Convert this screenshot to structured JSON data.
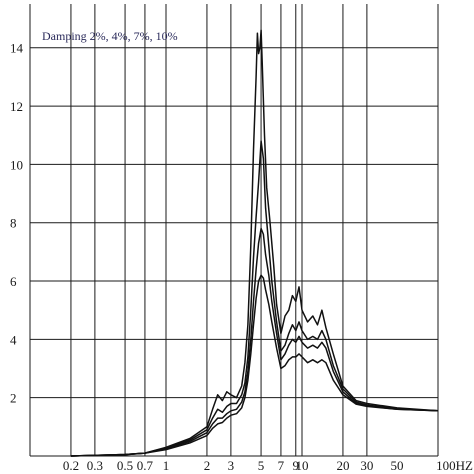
{
  "chart_data": {
    "type": "line",
    "title": "",
    "xlabel": "",
    "ylabel": "",
    "x_scale": "log",
    "xlim": [
      0.1,
      100
    ],
    "ylim": [
      0,
      15.5
    ],
    "grid": true,
    "legend_text": "Damping 2%, 4%, 7%, 10%",
    "legend_position": "top-left",
    "x_ticks": [
      {
        "value": 0.2,
        "label": "0.2"
      },
      {
        "value": 0.3,
        "label": "0.3"
      },
      {
        "value": 0.5,
        "label": "0.5"
      },
      {
        "value": 0.7,
        "label": "0.7"
      },
      {
        "value": 1,
        "label": "1"
      },
      {
        "value": 2,
        "label": "2"
      },
      {
        "value": 3,
        "label": "3"
      },
      {
        "value": 5,
        "label": "5"
      },
      {
        "value": 7,
        "label": "7"
      },
      {
        "value": 9,
        "label": "9"
      },
      {
        "value": 10,
        "label": "10"
      },
      {
        "value": 20,
        "label": "20"
      },
      {
        "value": 30,
        "label": "30"
      },
      {
        "value": 50,
        "label": "50"
      },
      {
        "value": 100,
        "label": "100HZ"
      }
    ],
    "x_grid": [
      0.2,
      0.3,
      0.5,
      0.7,
      1,
      2,
      3,
      5,
      7,
      9,
      10,
      20,
      30,
      100
    ],
    "y_ticks": [
      {
        "value": 2,
        "label": "2"
      },
      {
        "value": 4,
        "label": "4"
      },
      {
        "value": 6,
        "label": "6"
      },
      {
        "value": 8,
        "label": "8"
      },
      {
        "value": 10,
        "label": "10"
      },
      {
        "value": 12,
        "label": "12"
      },
      {
        "value": 14,
        "label": "14"
      }
    ],
    "series": [
      {
        "points": [
          [
            0.2,
            0
          ],
          [
            0.5,
            0.05
          ],
          [
            0.7,
            0.1
          ],
          [
            1,
            0.3
          ],
          [
            1.5,
            0.6
          ],
          [
            2,
            1
          ],
          [
            2.2,
            1.6
          ],
          [
            2.4,
            2.1
          ],
          [
            2.6,
            1.9
          ],
          [
            2.8,
            2.2
          ],
          [
            3,
            2.1
          ],
          [
            3.3,
            2.0
          ],
          [
            3.6,
            2.4
          ],
          [
            3.8,
            3.2
          ],
          [
            4.0,
            4.5
          ],
          [
            4.2,
            7.2
          ],
          [
            4.4,
            10.5
          ],
          [
            4.6,
            13.0
          ],
          [
            4.7,
            14.5
          ],
          [
            4.8,
            13.8
          ],
          [
            4.9,
            14.0
          ],
          [
            5.0,
            14.6
          ],
          [
            5.1,
            13.5
          ],
          [
            5.3,
            11.0
          ],
          [
            5.5,
            9.2
          ],
          [
            5.8,
            8.1
          ],
          [
            6.2,
            6.5
          ],
          [
            6.5,
            5.2
          ],
          [
            7.0,
            4.2
          ],
          [
            7.5,
            4.8
          ],
          [
            8.0,
            5.0
          ],
          [
            8.5,
            5.5
          ],
          [
            9.0,
            5.3
          ],
          [
            9.5,
            5.8
          ],
          [
            10,
            5.0
          ],
          [
            11,
            4.6
          ],
          [
            12,
            4.8
          ],
          [
            13,
            4.5
          ],
          [
            14,
            5.0
          ],
          [
            15,
            4.4
          ],
          [
            17,
            3.5
          ],
          [
            20,
            2.4
          ],
          [
            25,
            1.9
          ],
          [
            30,
            1.8
          ],
          [
            50,
            1.65
          ],
          [
            100,
            1.55
          ]
        ]
      },
      {
        "points": [
          [
            0.2,
            0
          ],
          [
            0.5,
            0.05
          ],
          [
            0.7,
            0.1
          ],
          [
            1,
            0.28
          ],
          [
            1.5,
            0.55
          ],
          [
            2,
            0.9
          ],
          [
            2.2,
            1.3
          ],
          [
            2.4,
            1.6
          ],
          [
            2.6,
            1.5
          ],
          [
            2.8,
            1.7
          ],
          [
            3,
            1.8
          ],
          [
            3.3,
            1.8
          ],
          [
            3.6,
            2.1
          ],
          [
            3.8,
            2.5
          ],
          [
            4.0,
            3.4
          ],
          [
            4.2,
            5.0
          ],
          [
            4.4,
            6.8
          ],
          [
            4.6,
            8.2
          ],
          [
            4.8,
            9.4
          ],
          [
            5.0,
            10.8
          ],
          [
            5.2,
            10.2
          ],
          [
            5.4,
            8.5
          ],
          [
            5.7,
            7.2
          ],
          [
            6.0,
            6.0
          ],
          [
            6.5,
            4.6
          ],
          [
            7.0,
            3.6
          ],
          [
            7.5,
            3.8
          ],
          [
            8.0,
            4.2
          ],
          [
            8.5,
            4.5
          ],
          [
            9.0,
            4.3
          ],
          [
            9.5,
            4.6
          ],
          [
            10,
            4.3
          ],
          [
            11,
            4.0
          ],
          [
            12,
            4.1
          ],
          [
            13,
            4.0
          ],
          [
            14,
            4.3
          ],
          [
            15,
            4.0
          ],
          [
            17,
            3.1
          ],
          [
            20,
            2.3
          ],
          [
            25,
            1.85
          ],
          [
            30,
            1.75
          ],
          [
            50,
            1.62
          ],
          [
            100,
            1.55
          ]
        ]
      },
      {
        "points": [
          [
            0.2,
            0
          ],
          [
            0.5,
            0.05
          ],
          [
            0.7,
            0.1
          ],
          [
            1,
            0.25
          ],
          [
            1.5,
            0.5
          ],
          [
            2,
            0.8
          ],
          [
            2.2,
            1.1
          ],
          [
            2.4,
            1.3
          ],
          [
            2.6,
            1.3
          ],
          [
            2.8,
            1.45
          ],
          [
            3,
            1.55
          ],
          [
            3.3,
            1.6
          ],
          [
            3.6,
            1.85
          ],
          [
            3.8,
            2.2
          ],
          [
            4.0,
            2.9
          ],
          [
            4.2,
            4.0
          ],
          [
            4.4,
            5.3
          ],
          [
            4.6,
            6.4
          ],
          [
            4.8,
            7.3
          ],
          [
            5.0,
            7.8
          ],
          [
            5.2,
            7.6
          ],
          [
            5.4,
            6.9
          ],
          [
            5.7,
            6.2
          ],
          [
            6.0,
            5.3
          ],
          [
            6.5,
            4.2
          ],
          [
            7.0,
            3.3
          ],
          [
            7.5,
            3.5
          ],
          [
            8.0,
            3.8
          ],
          [
            8.5,
            4.0
          ],
          [
            9.0,
            3.9
          ],
          [
            9.5,
            4.1
          ],
          [
            10,
            3.9
          ],
          [
            11,
            3.7
          ],
          [
            12,
            3.8
          ],
          [
            13,
            3.7
          ],
          [
            14,
            3.9
          ],
          [
            15,
            3.7
          ],
          [
            17,
            2.9
          ],
          [
            20,
            2.2
          ],
          [
            25,
            1.8
          ],
          [
            30,
            1.72
          ],
          [
            50,
            1.6
          ],
          [
            100,
            1.55
          ]
        ]
      },
      {
        "points": [
          [
            0.2,
            0
          ],
          [
            0.5,
            0.04
          ],
          [
            0.7,
            0.1
          ],
          [
            1,
            0.22
          ],
          [
            1.5,
            0.45
          ],
          [
            2,
            0.7
          ],
          [
            2.2,
            0.95
          ],
          [
            2.4,
            1.1
          ],
          [
            2.6,
            1.15
          ],
          [
            2.8,
            1.3
          ],
          [
            3,
            1.4
          ],
          [
            3.3,
            1.45
          ],
          [
            3.6,
            1.65
          ],
          [
            3.8,
            2.0
          ],
          [
            4.0,
            2.6
          ],
          [
            4.2,
            3.5
          ],
          [
            4.4,
            4.5
          ],
          [
            4.6,
            5.4
          ],
          [
            4.8,
            6.0
          ],
          [
            5.0,
            6.2
          ],
          [
            5.2,
            6.1
          ],
          [
            5.4,
            5.7
          ],
          [
            5.7,
            5.2
          ],
          [
            6.0,
            4.6
          ],
          [
            6.5,
            3.7
          ],
          [
            7.0,
            3.0
          ],
          [
            7.5,
            3.1
          ],
          [
            8.0,
            3.3
          ],
          [
            8.5,
            3.4
          ],
          [
            9.0,
            3.4
          ],
          [
            9.5,
            3.5
          ],
          [
            10,
            3.4
          ],
          [
            11,
            3.2
          ],
          [
            12,
            3.3
          ],
          [
            13,
            3.2
          ],
          [
            14,
            3.3
          ],
          [
            15,
            3.2
          ],
          [
            17,
            2.6
          ],
          [
            20,
            2.1
          ],
          [
            25,
            1.78
          ],
          [
            30,
            1.7
          ],
          [
            50,
            1.6
          ],
          [
            100,
            1.55
          ]
        ]
      }
    ]
  }
}
